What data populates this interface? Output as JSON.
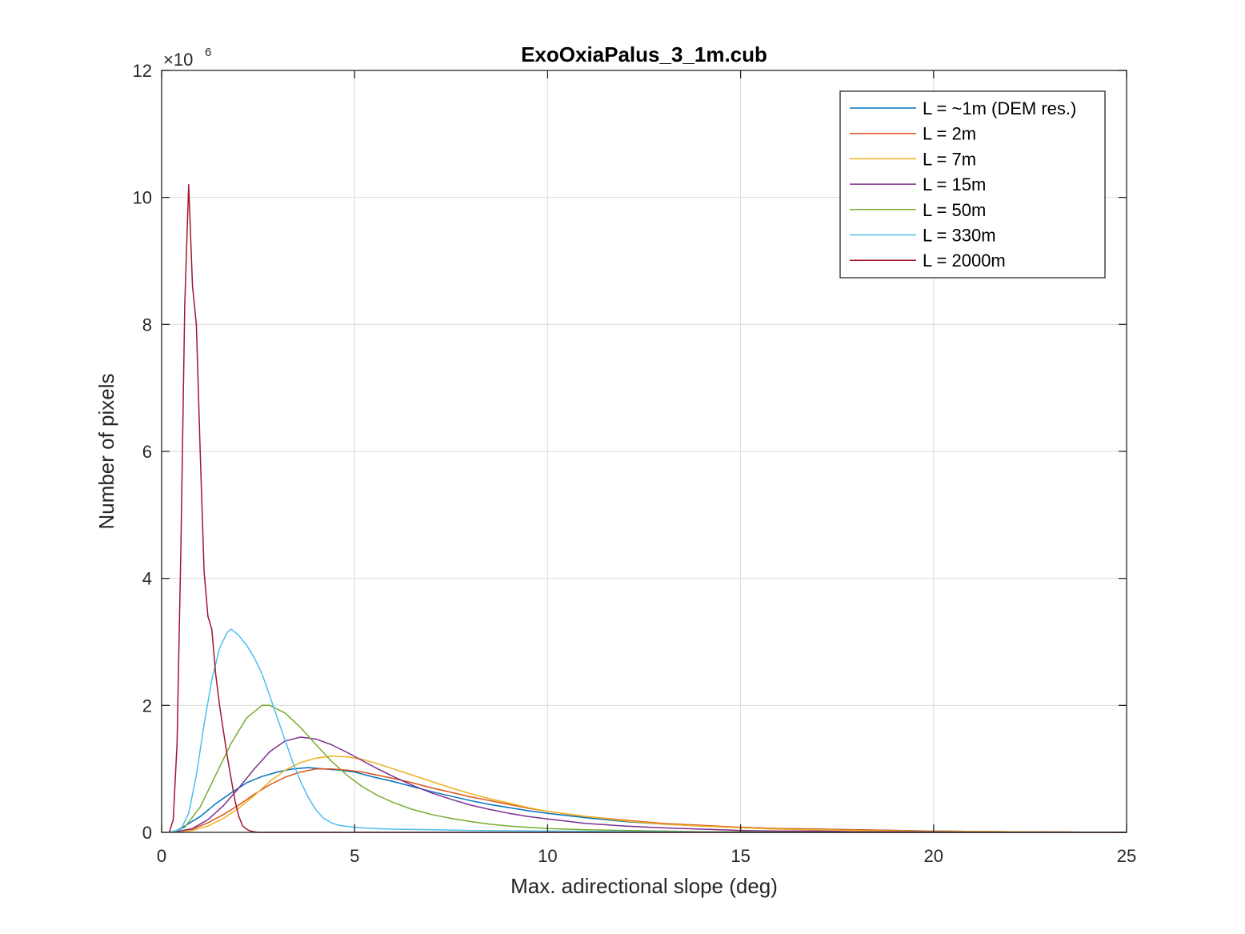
{
  "chart_data": {
    "type": "line",
    "title": "ExoOxiaPalus_3_1m.cub",
    "xlabel": "Max. adirectional slope (deg)",
    "ylabel": "Number of pixels",
    "xlim": [
      0,
      25
    ],
    "ylim": [
      0,
      12
    ],
    "y_multiplier": "×10",
    "y_multiplier_exponent": "6",
    "x_ticks": [
      "0",
      "5",
      "10",
      "15",
      "20",
      "25"
    ],
    "y_ticks": [
      "0",
      "2",
      "4",
      "6",
      "8",
      "10",
      "12"
    ],
    "grid": true,
    "legend_position": "top-right",
    "series": [
      {
        "name": "L = ~1m (DEM res.)",
        "color": "#0072BD",
        "x": [
          0.3,
          0.6,
          1.0,
          1.4,
          1.8,
          2.2,
          2.6,
          3.0,
          3.4,
          3.8,
          4.2,
          4.6,
          5.0,
          5.5,
          6.0,
          6.5,
          7.0,
          7.5,
          8.0,
          8.5,
          9.0,
          9.5,
          10.0,
          11.0,
          12.0,
          13.0,
          14.0,
          15.0,
          16.0,
          17.0,
          18.0,
          19.0,
          20.0,
          22.0,
          25.0
        ],
        "y": [
          0.0,
          0.1,
          0.25,
          0.45,
          0.62,
          0.78,
          0.88,
          0.95,
          1.0,
          1.02,
          1.0,
          0.98,
          0.95,
          0.87,
          0.8,
          0.72,
          0.64,
          0.57,
          0.5,
          0.44,
          0.39,
          0.34,
          0.3,
          0.23,
          0.17,
          0.13,
          0.1,
          0.08,
          0.06,
          0.05,
          0.04,
          0.03,
          0.02,
          0.01,
          0.0
        ]
      },
      {
        "name": "L = 2m",
        "color": "#D95319",
        "x": [
          0.3,
          0.8,
          1.2,
          1.6,
          2.0,
          2.4,
          2.8,
          3.2,
          3.6,
          4.0,
          4.4,
          4.8,
          5.2,
          5.6,
          6.0,
          6.5,
          7.0,
          7.5,
          8.0,
          8.5,
          9.0,
          9.5,
          10.0,
          11.0,
          12.0,
          13.0,
          14.0,
          15.0,
          16.0,
          17.0,
          18.0,
          19.0,
          20.0,
          22.0,
          25.0
        ],
        "y": [
          0.0,
          0.05,
          0.15,
          0.28,
          0.43,
          0.6,
          0.75,
          0.87,
          0.95,
          1.0,
          1.0,
          0.98,
          0.95,
          0.9,
          0.85,
          0.78,
          0.7,
          0.63,
          0.56,
          0.5,
          0.44,
          0.38,
          0.33,
          0.25,
          0.19,
          0.14,
          0.11,
          0.08,
          0.06,
          0.05,
          0.04,
          0.03,
          0.02,
          0.01,
          0.0
        ]
      },
      {
        "name": "L = 7m",
        "color": "#EDB120",
        "x": [
          0.3,
          0.8,
          1.2,
          1.6,
          2.0,
          2.4,
          2.8,
          3.2,
          3.6,
          4.0,
          4.4,
          4.8,
          5.2,
          5.6,
          6.0,
          6.5,
          7.0,
          7.5,
          8.0,
          8.5,
          9.0,
          9.5,
          10.0,
          11.0,
          12.0,
          13.0,
          14.0,
          15.0,
          16.0,
          17.0,
          18.0,
          19.0,
          20.0,
          22.0,
          25.0
        ],
        "y": [
          0.0,
          0.03,
          0.1,
          0.22,
          0.38,
          0.58,
          0.8,
          0.98,
          1.1,
          1.17,
          1.2,
          1.19,
          1.15,
          1.08,
          1.0,
          0.9,
          0.8,
          0.7,
          0.61,
          0.53,
          0.46,
          0.39,
          0.33,
          0.25,
          0.18,
          0.13,
          0.1,
          0.07,
          0.05,
          0.04,
          0.03,
          0.02,
          0.02,
          0.01,
          0.0
        ]
      },
      {
        "name": "L = 15m",
        "color": "#7E2F8E",
        "x": [
          0.3,
          0.8,
          1.2,
          1.6,
          2.0,
          2.4,
          2.8,
          3.2,
          3.6,
          4.0,
          4.4,
          4.8,
          5.2,
          5.6,
          6.0,
          6.5,
          7.0,
          7.5,
          8.0,
          8.5,
          9.0,
          9.5,
          10.0,
          11.0,
          12.0,
          13.0,
          14.0,
          15.0,
          16.0,
          17.0,
          18.0,
          20.0,
          22.0,
          25.0
        ],
        "y": [
          0.0,
          0.06,
          0.2,
          0.42,
          0.7,
          1.0,
          1.27,
          1.44,
          1.5,
          1.47,
          1.38,
          1.26,
          1.13,
          1.0,
          0.88,
          0.74,
          0.62,
          0.52,
          0.43,
          0.36,
          0.3,
          0.25,
          0.21,
          0.14,
          0.1,
          0.07,
          0.05,
          0.03,
          0.02,
          0.02,
          0.01,
          0.01,
          0.0,
          0.0
        ]
      },
      {
        "name": "L = 50m",
        "color": "#77AC30",
        "x": [
          0.3,
          0.6,
          1.0,
          1.4,
          1.8,
          2.2,
          2.6,
          2.8,
          3.2,
          3.6,
          4.0,
          4.4,
          4.8,
          5.2,
          5.6,
          6.0,
          6.5,
          7.0,
          7.5,
          8.0,
          8.5,
          9.0,
          9.5,
          10.0,
          11.0,
          12.0,
          13.0,
          14.0,
          15.0,
          17.0,
          20.0,
          25.0
        ],
        "y": [
          0.0,
          0.08,
          0.4,
          0.9,
          1.4,
          1.8,
          2.0,
          2.0,
          1.88,
          1.65,
          1.38,
          1.12,
          0.9,
          0.72,
          0.58,
          0.47,
          0.36,
          0.28,
          0.22,
          0.17,
          0.13,
          0.1,
          0.08,
          0.06,
          0.04,
          0.03,
          0.02,
          0.01,
          0.01,
          0.0,
          0.0,
          0.0
        ]
      },
      {
        "name": "L = 330m",
        "color": "#4DBEEE",
        "x": [
          0.2,
          0.5,
          0.7,
          0.9,
          1.1,
          1.3,
          1.5,
          1.7,
          1.8,
          2.0,
          2.2,
          2.4,
          2.6,
          2.8,
          3.0,
          3.2,
          3.4,
          3.6,
          3.8,
          4.0,
          4.2,
          4.4,
          4.6,
          5.0,
          5.5,
          6.0,
          7.0,
          8.0,
          10.0,
          15.0,
          25.0
        ],
        "y": [
          0.0,
          0.05,
          0.3,
          0.9,
          1.7,
          2.4,
          2.9,
          3.15,
          3.2,
          3.1,
          2.95,
          2.75,
          2.5,
          2.15,
          1.8,
          1.45,
          1.1,
          0.8,
          0.55,
          0.35,
          0.22,
          0.15,
          0.11,
          0.08,
          0.06,
          0.05,
          0.04,
          0.03,
          0.02,
          0.0,
          0.0
        ]
      },
      {
        "name": "L = 2000m",
        "color": "#A2142F",
        "x": [
          0.2,
          0.3,
          0.4,
          0.5,
          0.6,
          0.7,
          0.8,
          0.9,
          1.0,
          1.1,
          1.2,
          1.3,
          1.4,
          1.5,
          1.6,
          1.7,
          1.8,
          1.9,
          2.0,
          2.1,
          2.2,
          2.3,
          2.4,
          2.5,
          3.0,
          5.0,
          25.0
        ],
        "y": [
          0.0,
          0.2,
          1.4,
          4.5,
          8.3,
          10.2,
          8.6,
          8.0,
          6.0,
          4.1,
          3.4,
          3.2,
          2.5,
          2.0,
          1.6,
          1.2,
          0.85,
          0.5,
          0.25,
          0.1,
          0.05,
          0.02,
          0.01,
          0.0,
          0.0,
          0.0,
          0.0
        ]
      }
    ]
  }
}
